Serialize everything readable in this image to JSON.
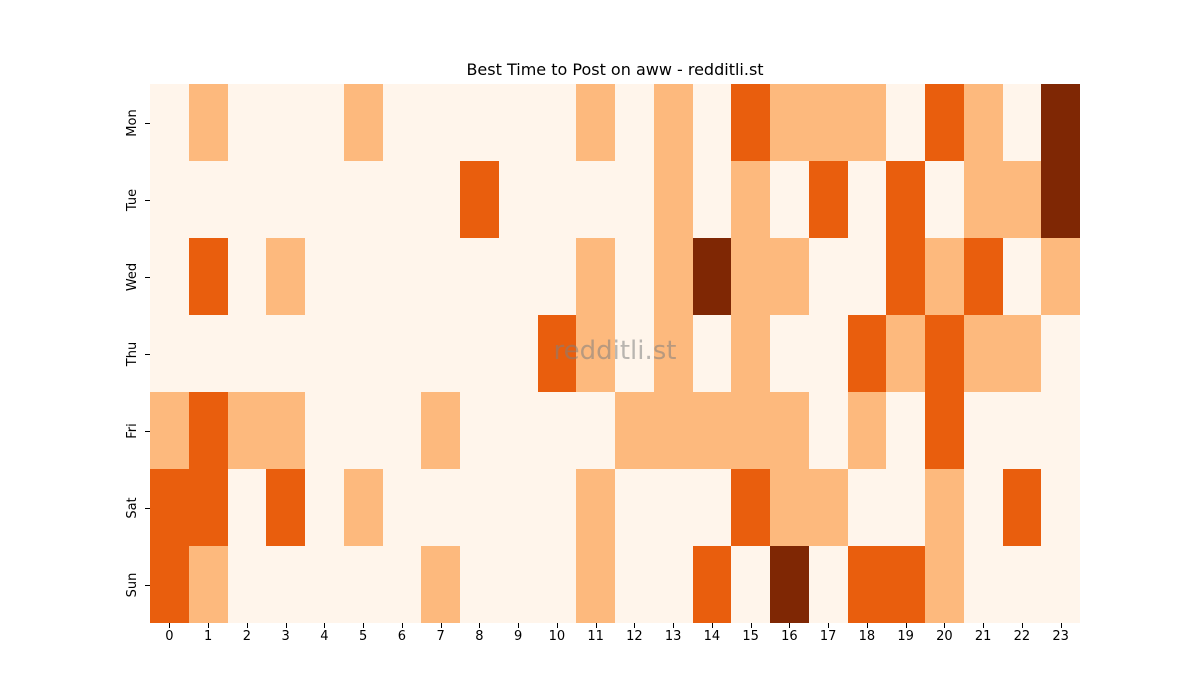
{
  "chart_data": {
    "type": "heatmap",
    "title": "Best Time to Post on aww - redditli.st",
    "xlabel": "",
    "ylabel": "",
    "x": [
      "0",
      "1",
      "2",
      "3",
      "4",
      "5",
      "6",
      "7",
      "8",
      "9",
      "10",
      "11",
      "12",
      "13",
      "14",
      "15",
      "16",
      "17",
      "18",
      "19",
      "20",
      "21",
      "22",
      "23"
    ],
    "y": [
      "Mon",
      "Tue",
      "Wed",
      "Thu",
      "Fri",
      "Sat",
      "Sun"
    ],
    "levels_colors": [
      "#fff5eb",
      "#fdb97d",
      "#e95e0d",
      "#7f2704"
    ],
    "values": [
      [
        0,
        1,
        0,
        0,
        0,
        1,
        0,
        0,
        0,
        0,
        0,
        1,
        0,
        1,
        0,
        2,
        1,
        1,
        1,
        0,
        2,
        1,
        0,
        3
      ],
      [
        0,
        0,
        0,
        0,
        0,
        0,
        0,
        0,
        2,
        0,
        0,
        0,
        0,
        1,
        0,
        1,
        0,
        2,
        0,
        2,
        0,
        1,
        1,
        3
      ],
      [
        0,
        2,
        0,
        1,
        0,
        0,
        0,
        0,
        0,
        0,
        0,
        1,
        0,
        1,
        3,
        1,
        1,
        0,
        0,
        2,
        1,
        2,
        0,
        1
      ],
      [
        0,
        0,
        0,
        0,
        0,
        0,
        0,
        0,
        0,
        0,
        2,
        1,
        0,
        1,
        0,
        1,
        0,
        0,
        2,
        1,
        2,
        1,
        1,
        0
      ],
      [
        1,
        2,
        1,
        1,
        0,
        0,
        0,
        1,
        0,
        0,
        0,
        0,
        1,
        1,
        1,
        1,
        1,
        0,
        1,
        0,
        2,
        0,
        0,
        0
      ],
      [
        2,
        2,
        0,
        2,
        0,
        1,
        0,
        0,
        0,
        0,
        0,
        1,
        0,
        0,
        0,
        2,
        1,
        1,
        0,
        0,
        1,
        0,
        2,
        0
      ],
      [
        2,
        1,
        0,
        0,
        0,
        0,
        0,
        1,
        0,
        0,
        0,
        1,
        0,
        0,
        2,
        0,
        3,
        0,
        2,
        2,
        1,
        0,
        0,
        0
      ]
    ],
    "grid": false,
    "legend": "none"
  },
  "watermark": "redditli.st"
}
